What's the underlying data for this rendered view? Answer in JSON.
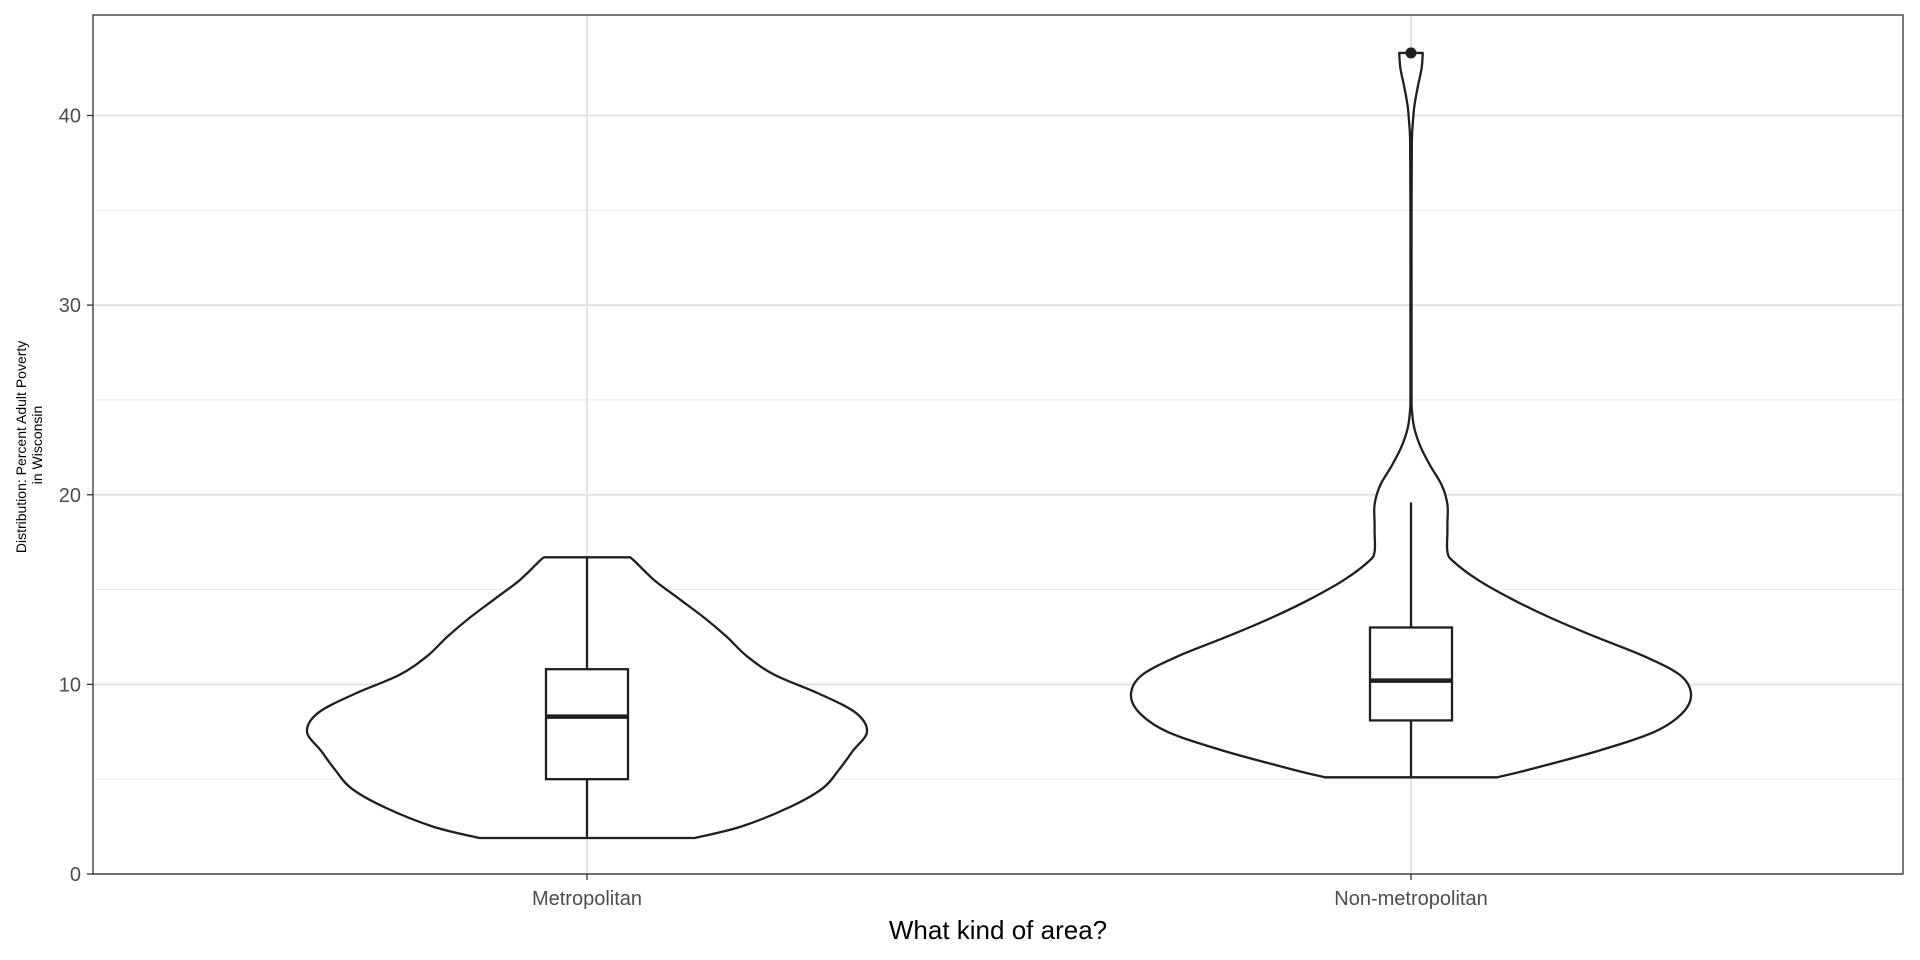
{
  "chart_data": {
    "type": "violin",
    "title": "",
    "xlabel": "What kind of area?",
    "ylabel_lines": [
      "Distribution: Percent Adult Poverty",
      "in Wisconsin"
    ],
    "categories": [
      "Metropolitan",
      "Non-metropolitan"
    ],
    "ylim": [
      0,
      45.3
    ],
    "yticks": [
      0,
      10,
      20,
      30,
      40
    ],
    "grid": true,
    "groups": [
      {
        "name": "Metropolitan",
        "violin": {
          "y": [
            1.9,
            2.5,
            3.5,
            4.5,
            5.5,
            6.5,
            7.5,
            8.5,
            9.5,
            10.5,
            11.5,
            12.5,
            13.5,
            14.5,
            15.5,
            16.5,
            16.7
          ],
          "width": [
            0.385,
            0.55,
            0.72,
            0.84,
            0.9,
            0.95,
            1.0,
            0.96,
            0.83,
            0.67,
            0.57,
            0.5,
            0.42,
            0.33,
            0.24,
            0.17,
            0.154
          ]
        },
        "box": {
          "min": 1.9,
          "q1": 5.0,
          "median": 8.3,
          "q3": 10.8,
          "max": 16.7
        },
        "outliers": []
      },
      {
        "name": "Non-metropolitan",
        "violin": {
          "y": [
            5.1,
            5.5,
            6.5,
            7.5,
            8.5,
            9.5,
            10.5,
            11.5,
            12.5,
            13.5,
            14.5,
            15.5,
            16.5,
            17.0,
            18.0,
            18.5,
            19.5,
            20.5,
            21.5,
            22.5,
            23.5,
            24.5,
            25.5,
            30,
            35,
            38.5,
            39.5,
            40.5,
            41.5,
            42.5,
            43.3
          ],
          "width": [
            0.307,
            0.42,
            0.67,
            0.87,
            0.97,
            1.0,
            0.96,
            0.83,
            0.66,
            0.5,
            0.36,
            0.24,
            0.15,
            0.13,
            0.13,
            0.13,
            0.13,
            0.11,
            0.07,
            0.035,
            0.012,
            0.003,
            0.002,
            0.002,
            0.002,
            0.003,
            0.006,
            0.012,
            0.024,
            0.038,
            0.042
          ]
        },
        "box": {
          "min": 5.1,
          "q1": 8.1,
          "median": 10.2,
          "q3": 13.0,
          "max": 19.6
        },
        "outliers": [
          43.3
        ]
      }
    ]
  }
}
